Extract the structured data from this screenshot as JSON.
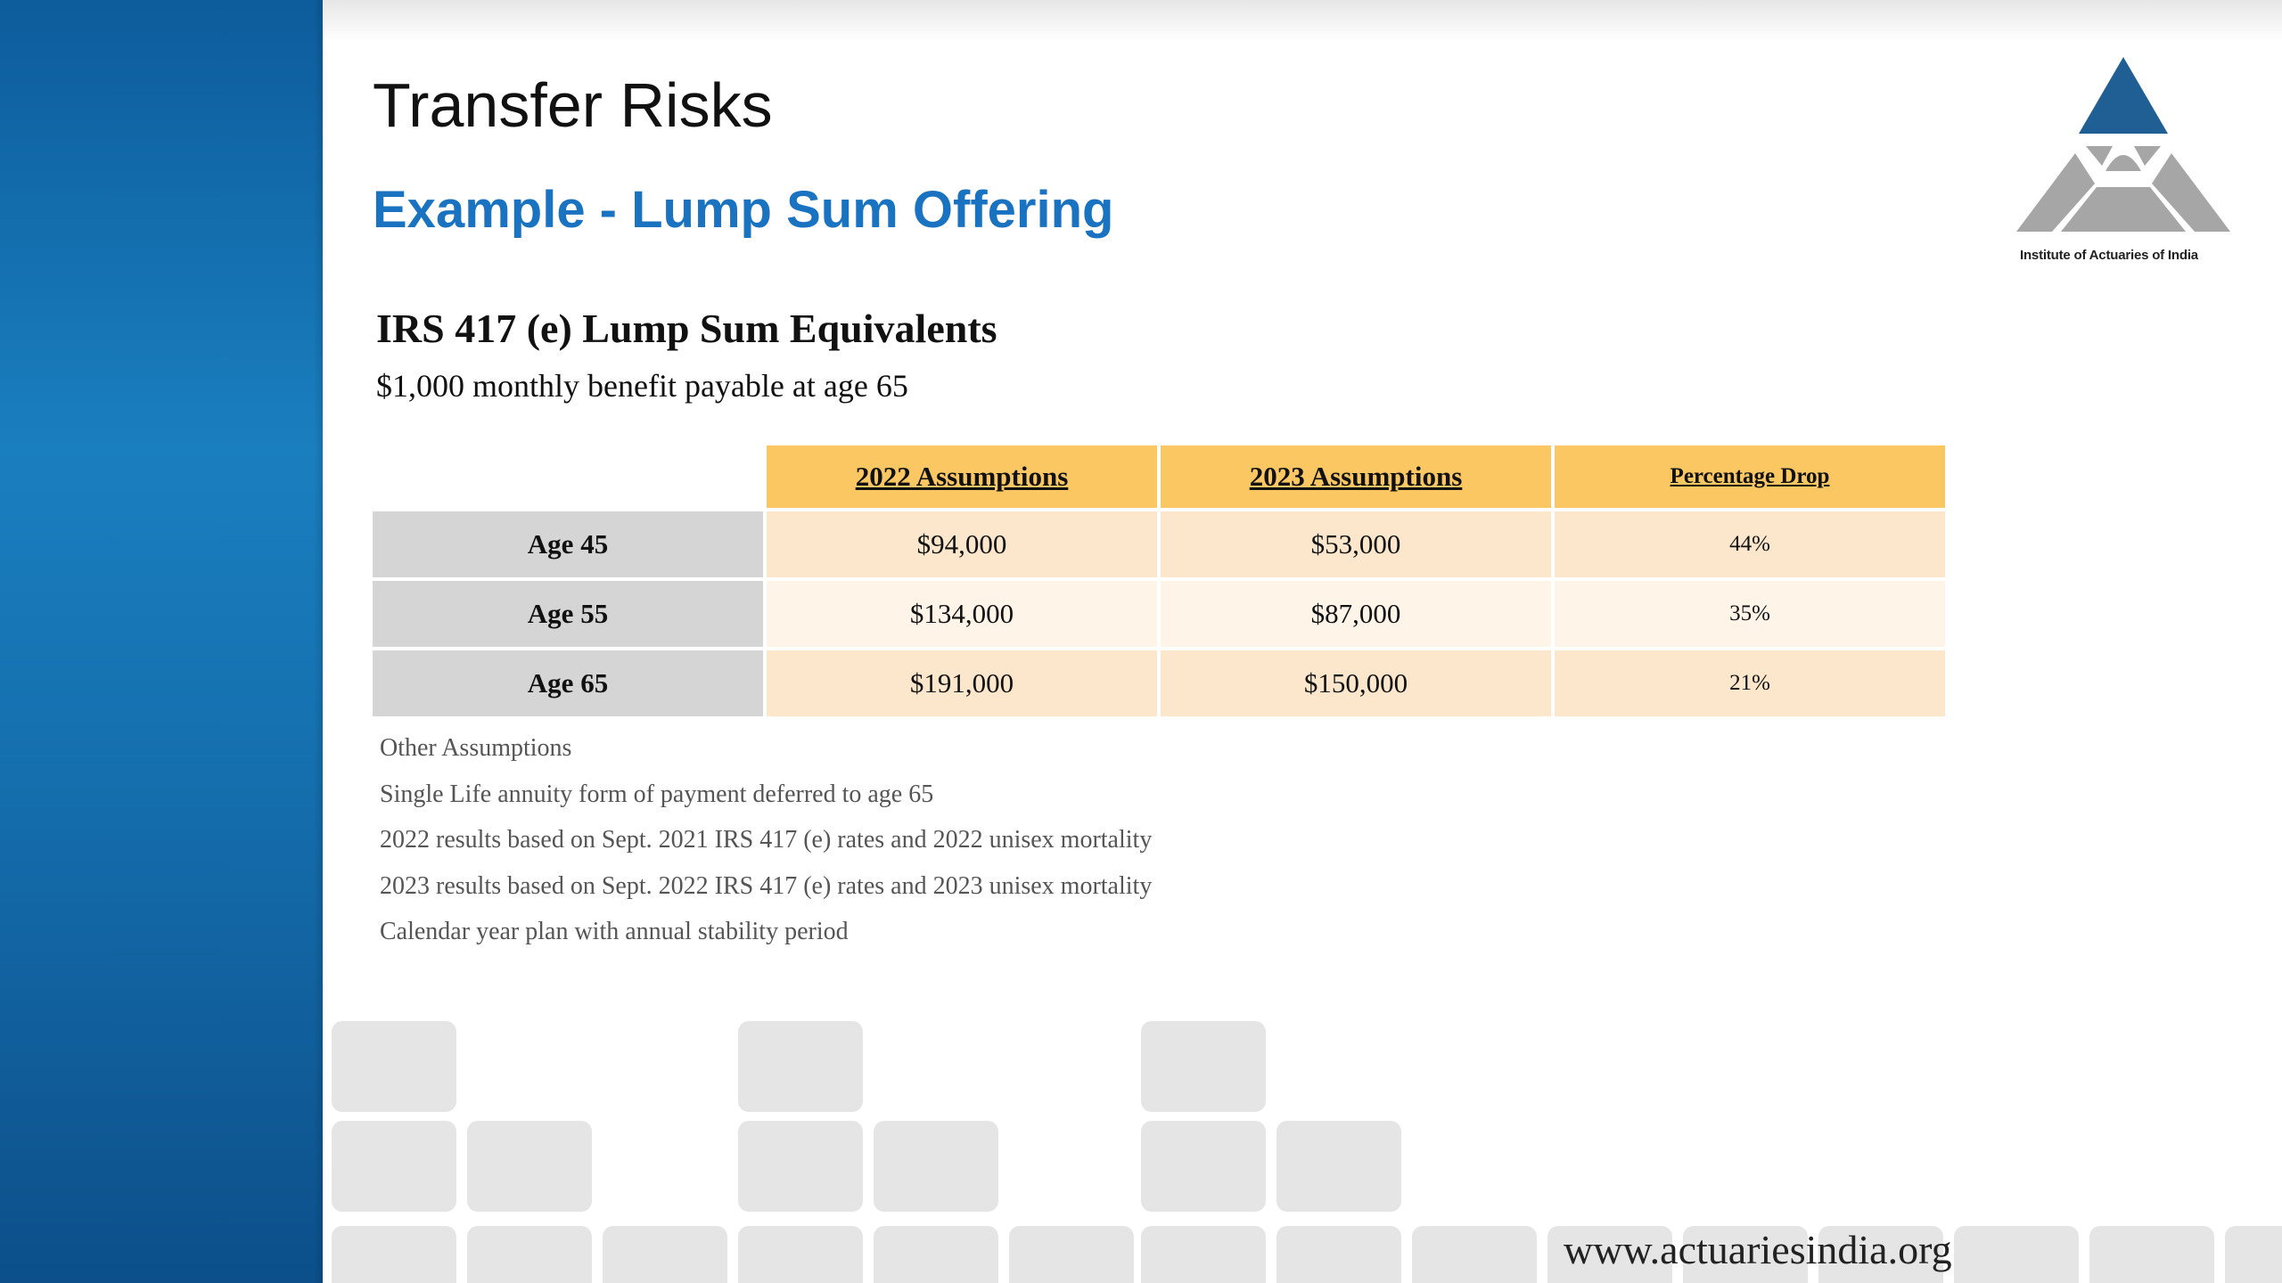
{
  "slide": {
    "title": "Transfer Risks",
    "subtitle": "Example - Lump Sum Offering",
    "logo_caption": "Institute of Actuaries of India",
    "url": "www.actuariesindia.org",
    "accent_color": "#1a73c1",
    "sidebar_color": "#1570b0"
  },
  "section": {
    "heading": "IRS 417 (e) Lump Sum Equivalents",
    "subheading": "$1,000 monthly benefit payable at age 65"
  },
  "table": {
    "columns": [
      "2022 Assumptions",
      "2023 Assumptions",
      "Percentage Drop"
    ],
    "rows": [
      {
        "label": "Age 45",
        "v2022": "$94,000",
        "v2023": "$53,000",
        "drop": "44%"
      },
      {
        "label": "Age 55",
        "v2022": "$134,000",
        "v2023": "$87,000",
        "drop": "35%"
      },
      {
        "label": "Age 65",
        "v2022": "$191,000",
        "v2023": "$150,000",
        "drop": "21%"
      }
    ],
    "header_color": "#fbc762",
    "row_label_color": "#d5d5d5"
  },
  "notes": [
    "Other Assumptions",
    "Single Life annuity form of payment deferred to age 65",
    "2022 results based on Sept. 2021 IRS 417 (e) rates and 2022 unisex mortality",
    "2023 results based on Sept. 2022 IRS 417 (e) rates and 2023 unisex mortality",
    "Calendar year plan with annual stability period"
  ]
}
